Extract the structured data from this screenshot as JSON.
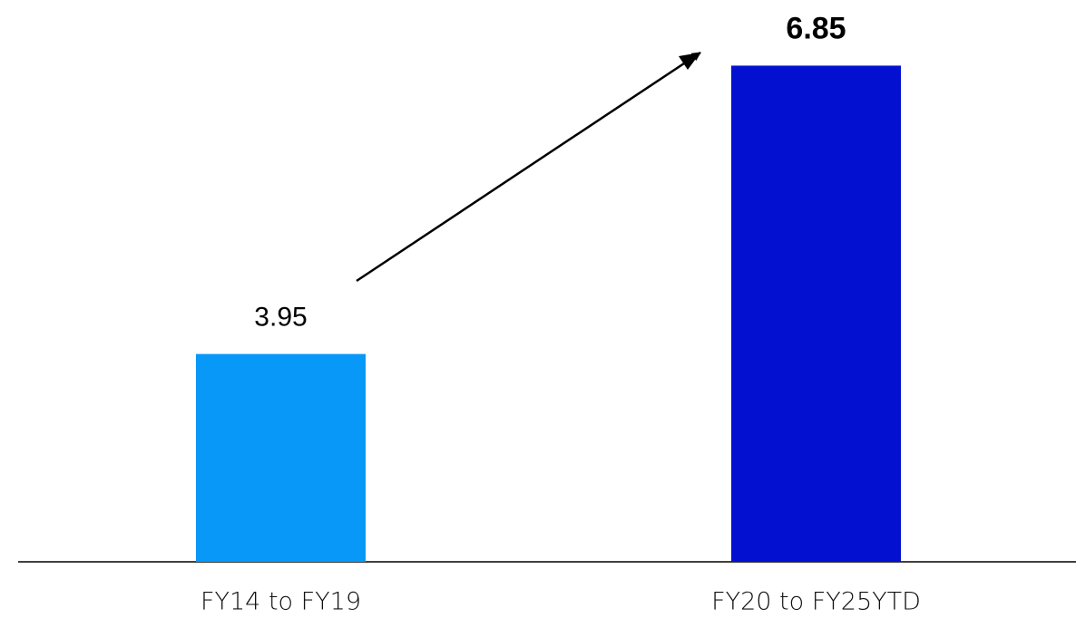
{
  "chart_data": {
    "type": "bar",
    "categories": [
      "FY14 to FY19",
      "FY20 to FY25YTD"
    ],
    "values": [
      3.95,
      6.85
    ],
    "colors": [
      "#0898f8",
      "#0410d0"
    ],
    "bold_value_labels": [
      1
    ],
    "ylim": [
      1.86,
      7.51
    ]
  }
}
